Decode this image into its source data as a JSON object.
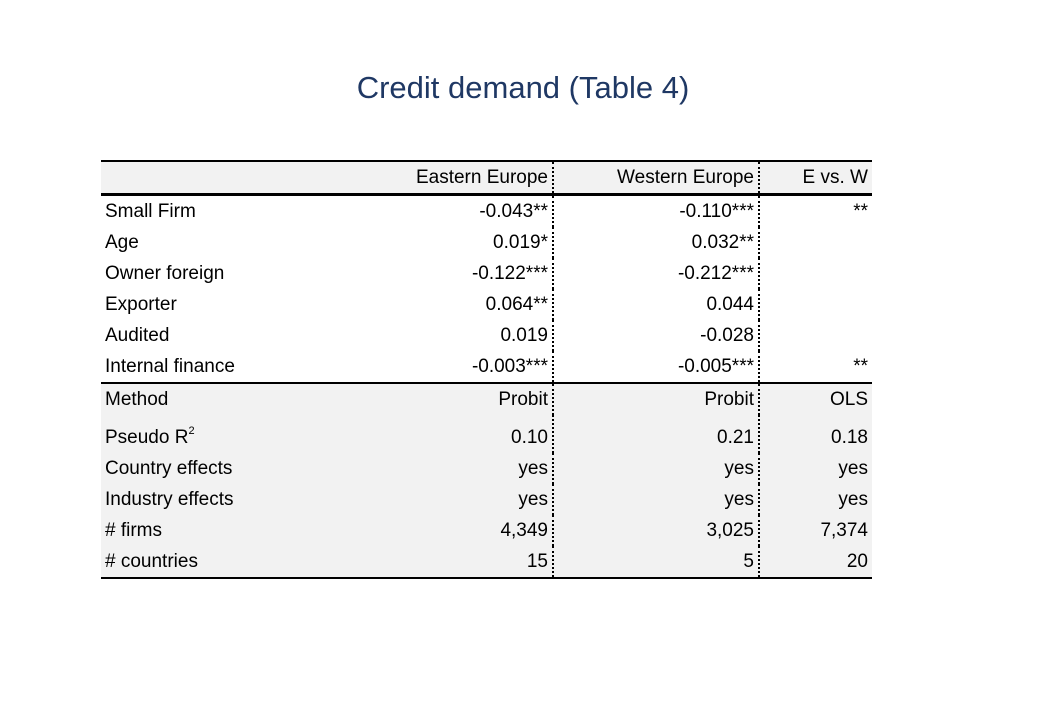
{
  "title": "Credit demand (Table 4)",
  "table": {
    "header": {
      "label": "",
      "east": "Eastern Europe",
      "west": "Western Europe",
      "diff": "E vs. W"
    },
    "coefficient_rows": [
      {
        "label": "Small Firm",
        "east": "-0.043**",
        "west": "-0.110***",
        "diff": "**"
      },
      {
        "label": "Age",
        "east": "0.019*",
        "west": "0.032**",
        "diff": ""
      },
      {
        "label": "Owner foreign",
        "east": "-0.122***",
        "west": "-0.212***",
        "diff": ""
      },
      {
        "label": "Exporter",
        "east": "0.064**",
        "west": "0.044",
        "diff": ""
      },
      {
        "label": "Audited",
        "east": "0.019",
        "west": "-0.028",
        "diff": ""
      },
      {
        "label": "Internal finance",
        "east": "-0.003***",
        "west": "-0.005***",
        "diff": "**"
      }
    ],
    "stats_rows": {
      "method": {
        "label": "Method",
        "east": "Probit",
        "west": "Probit",
        "diff": "OLS"
      },
      "pseudo_r2": {
        "label": "Pseudo R",
        "sup": "2",
        "east": "0.10",
        "west": "0.21",
        "diff": "0.18"
      },
      "country_effects": {
        "label": "Country effects",
        "east": "yes",
        "west": "yes",
        "diff": "yes"
      },
      "industry_effects": {
        "label": "Industry effects",
        "east": "yes",
        "west": "yes",
        "diff": "yes"
      },
      "firms": {
        "label": "# firms",
        "east": "4,349",
        "west": "3,025",
        "diff": "7,374"
      },
      "countries": {
        "label": "# countries",
        "east": "15",
        "west": "5",
        "diff": "20"
      }
    }
  },
  "colors": {
    "title": "#1f3864",
    "shading": "#f2f2f2"
  }
}
